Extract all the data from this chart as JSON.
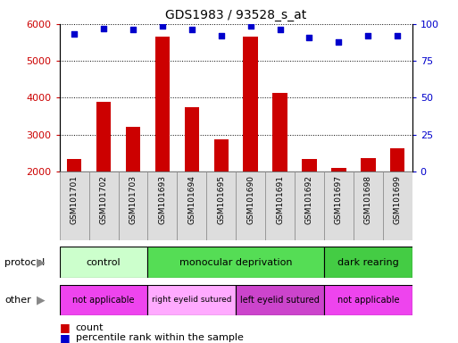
{
  "title": "GDS1983 / 93528_s_at",
  "samples": [
    "GSM101701",
    "GSM101702",
    "GSM101703",
    "GSM101693",
    "GSM101694",
    "GSM101695",
    "GSM101690",
    "GSM101691",
    "GSM101692",
    "GSM101697",
    "GSM101698",
    "GSM101699"
  ],
  "counts": [
    2350,
    3900,
    3220,
    5650,
    3750,
    2880,
    5660,
    4120,
    2350,
    2100,
    2370,
    2620
  ],
  "percentiles": [
    93,
    97,
    96,
    99,
    96,
    92,
    99,
    96,
    91,
    88,
    92,
    92
  ],
  "bar_color": "#cc0000",
  "dot_color": "#0000cc",
  "ylim_left": [
    2000,
    6000
  ],
  "ylim_right": [
    0,
    100
  ],
  "yticks_left": [
    2000,
    3000,
    4000,
    5000,
    6000
  ],
  "yticks_right": [
    0,
    25,
    50,
    75,
    100
  ],
  "protocol_groups": [
    {
      "label": "control",
      "start": 0,
      "end": 3,
      "color": "#ccffcc"
    },
    {
      "label": "monocular deprivation",
      "start": 3,
      "end": 9,
      "color": "#55dd55"
    },
    {
      "label": "dark rearing",
      "start": 9,
      "end": 12,
      "color": "#44cc44"
    }
  ],
  "other_groups": [
    {
      "label": "not applicable",
      "start": 0,
      "end": 3,
      "color": "#ee44ee"
    },
    {
      "label": "right eyelid sutured",
      "start": 3,
      "end": 6,
      "color": "#ffaaff"
    },
    {
      "label": "left eyelid sutured",
      "start": 6,
      "end": 9,
      "color": "#cc44cc"
    },
    {
      "label": "not applicable",
      "start": 9,
      "end": 12,
      "color": "#ee44ee"
    }
  ],
  "legend_count_color": "#cc0000",
  "legend_dot_color": "#0000cc",
  "protocol_label": "protocol",
  "other_label": "other",
  "background_color": "#ffffff",
  "tick_bg_color": "#dddddd",
  "tick_border_color": "#888888"
}
